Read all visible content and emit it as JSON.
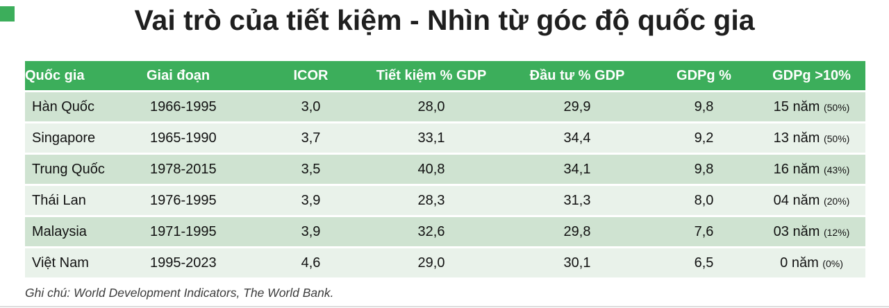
{
  "title": "Vai trò của tiết kiệm - Nhìn từ góc độ quốc gia",
  "footnote": "Ghi chú: World Development Indicators, The World Bank.",
  "accent": {
    "header_green": "#3CAE5B",
    "row_odd": "#CFE3D1",
    "row_even": "#E9F2EA"
  },
  "table": {
    "columns": [
      "Quốc gia",
      "Giai đoạn",
      "ICOR",
      "Tiết kiệm % GDP",
      "Đầu tư % GDP",
      "GDPg %",
      "GDPg >10%"
    ],
    "rows": [
      {
        "country": "Hàn Quốc",
        "period": "1966-1995",
        "icor": "3,0",
        "saving": "28,0",
        "invest": "29,9",
        "gdpg": "9,8",
        "years": "15 năm",
        "pct": "(50%)"
      },
      {
        "country": "Singapore",
        "period": "1965-1990",
        "icor": "3,7",
        "saving": "33,1",
        "invest": "34,4",
        "gdpg": "9,2",
        "years": "13 năm",
        "pct": "(50%)"
      },
      {
        "country": "Trung Quốc",
        "period": "1978-2015",
        "icor": "3,5",
        "saving": "40,8",
        "invest": "34,1",
        "gdpg": "9,8",
        "years": "16 năm",
        "pct": "(43%)"
      },
      {
        "country": "Thái Lan",
        "period": "1976-1995",
        "icor": "3,9",
        "saving": "28,3",
        "invest": "31,3",
        "gdpg": "8,0",
        "years": "04 năm",
        "pct": "(20%)"
      },
      {
        "country": "Malaysia",
        "period": "1971-1995",
        "icor": "3,9",
        "saving": "32,6",
        "invest": "29,8",
        "gdpg": "7,6",
        "years": "03 năm",
        "pct": "(12%)"
      },
      {
        "country": "Việt Nam",
        "period": "1995-2023",
        "icor": "4,6",
        "saving": "29,0",
        "invest": "30,1",
        "gdpg": "6,5",
        "years": "0 năm",
        "pct": "(0%)"
      }
    ]
  },
  "chart_data": {
    "type": "table",
    "title": "Vai trò của tiết kiệm - Nhìn từ góc độ quốc gia",
    "columns": [
      "Quốc gia",
      "Giai đoạn",
      "ICOR",
      "Tiết kiệm % GDP",
      "Đầu tư % GDP",
      "GDPg %",
      "GDPg >10%"
    ],
    "rows": [
      [
        "Hàn Quốc",
        "1966-1995",
        "3,0",
        "28,0",
        "29,9",
        "9,8",
        "15 năm (50%)"
      ],
      [
        "Singapore",
        "1965-1990",
        "3,7",
        "33,1",
        "34,4",
        "9,2",
        "13 năm (50%)"
      ],
      [
        "Trung Quốc",
        "1978-2015",
        "3,5",
        "40,8",
        "34,1",
        "9,8",
        "16 năm (43%)"
      ],
      [
        "Thái Lan",
        "1976-1995",
        "3,9",
        "28,3",
        "31,3",
        "8,0",
        "04 năm (20%)"
      ],
      [
        "Malaysia",
        "1971-1995",
        "3,9",
        "32,6",
        "29,8",
        "7,6",
        "03 năm (12%)"
      ],
      [
        "Việt Nam",
        "1995-2023",
        "4,6",
        "29,0",
        "30,1",
        "6,5",
        "0 năm (0%)"
      ]
    ],
    "note": "Ghi chú: World Development Indicators, The World Bank."
  }
}
